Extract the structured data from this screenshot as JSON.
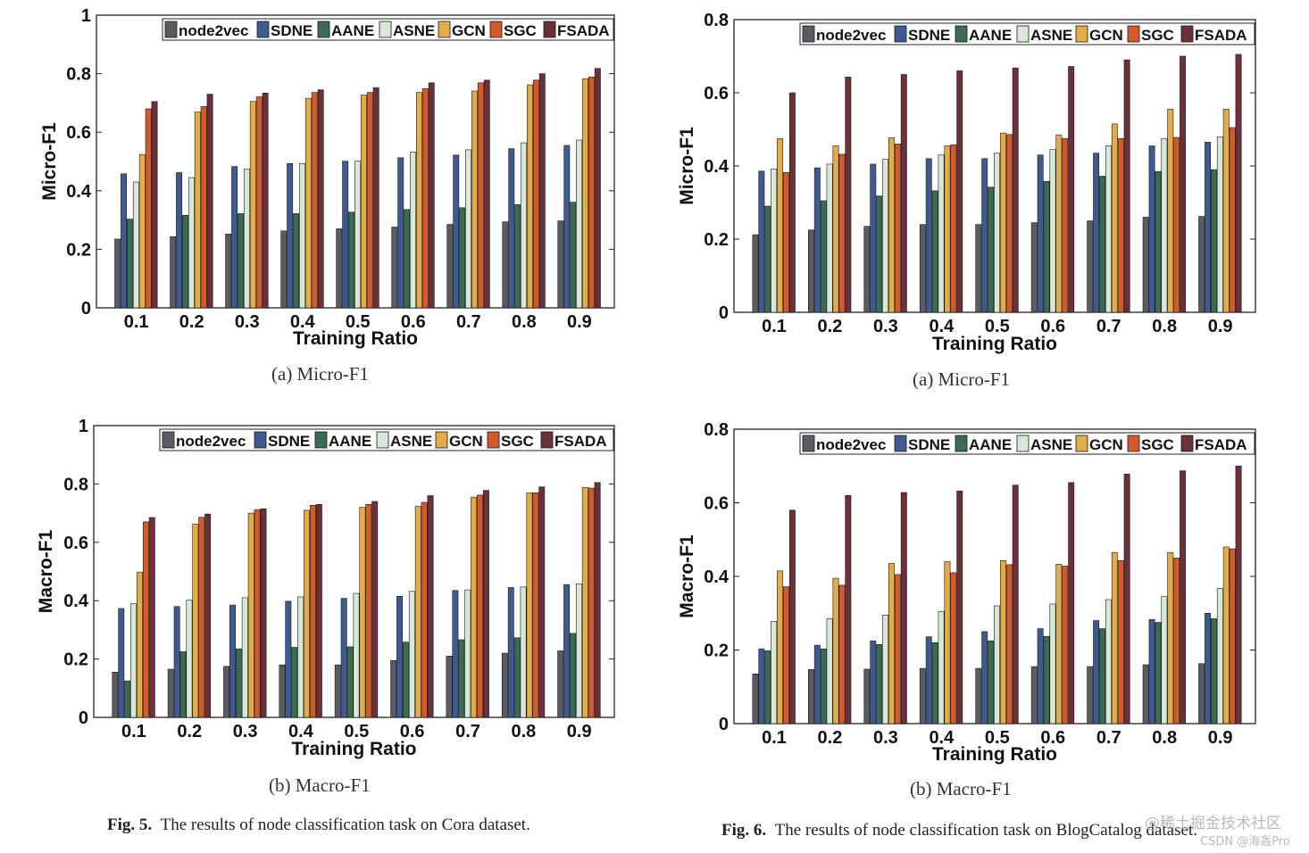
{
  "series_names": [
    "node2vec",
    "SDNE",
    "AANE",
    "ASNE",
    "GCN",
    "SGC",
    "FSADA"
  ],
  "colors": {
    "node2vec": "#5b5c63",
    "SDNE": "#3f5a91",
    "AANE": "#3b6b53",
    "ASNE": "#d7e8d6",
    "GCN": "#e3ac47",
    "SGC": "#d25a2b",
    "FSADA": "#6b3038"
  },
  "captions": {
    "fig5_label": "Fig. 5.",
    "fig5_text": "The results of node classification task on Cora dataset.",
    "fig6_label": "Fig. 6.",
    "fig6_text": "The results of node classification task on BlogCatalog dataset."
  },
  "watermark": {
    "line1": "@稀土掘金技术社区",
    "line2": "CSDN @海轰Pro"
  },
  "chart_data": [
    {
      "id": "cora-micro",
      "type": "bar",
      "subcaption": "(a)  Micro-F1",
      "xlabel": "Training Ratio",
      "ylabel": "Micro-F1",
      "ylim": [
        0,
        1
      ],
      "yticks": [
        "0",
        "0.2",
        "0.4",
        "0.6",
        "0.8",
        "1"
      ],
      "categories": [
        "0.1",
        "0.2",
        "0.3",
        "0.4",
        "0.5",
        "0.6",
        "0.7",
        "0.8",
        "0.9"
      ],
      "series": [
        {
          "name": "node2vec",
          "values": [
            0.235,
            0.243,
            0.252,
            0.263,
            0.27,
            0.276,
            0.285,
            0.294,
            0.297
          ]
        },
        {
          "name": "SDNE",
          "values": [
            0.458,
            0.462,
            0.483,
            0.493,
            0.501,
            0.513,
            0.522,
            0.544,
            0.555
          ]
        },
        {
          "name": "AANE",
          "values": [
            0.303,
            0.316,
            0.322,
            0.322,
            0.327,
            0.336,
            0.342,
            0.353,
            0.361
          ]
        },
        {
          "name": "ASNE",
          "values": [
            0.43,
            0.445,
            0.474,
            0.493,
            0.501,
            0.532,
            0.54,
            0.564,
            0.573
          ]
        },
        {
          "name": "GCN",
          "values": [
            0.524,
            0.669,
            0.705,
            0.716,
            0.727,
            0.736,
            0.741,
            0.762,
            0.783
          ]
        },
        {
          "name": "SGC",
          "values": [
            0.68,
            0.688,
            0.721,
            0.736,
            0.736,
            0.749,
            0.769,
            0.778,
            0.789
          ]
        },
        {
          "name": "FSADA",
          "values": [
            0.705,
            0.73,
            0.734,
            0.745,
            0.752,
            0.769,
            0.778,
            0.8,
            0.818
          ]
        }
      ]
    },
    {
      "id": "cora-macro",
      "type": "bar",
      "subcaption": "(b)  Macro-F1",
      "xlabel": "Training Ratio",
      "ylabel": "Macro-F1",
      "ylim": [
        0,
        1
      ],
      "yticks": [
        "0",
        "0.2",
        "0.4",
        "0.6",
        "0.8",
        "1"
      ],
      "categories": [
        "0.1",
        "0.2",
        "0.3",
        "0.4",
        "0.5",
        "0.6",
        "0.7",
        "0.8",
        "0.9"
      ],
      "series": [
        {
          "name": "node2vec",
          "values": [
            0.155,
            0.165,
            0.175,
            0.18,
            0.18,
            0.195,
            0.21,
            0.22,
            0.228
          ]
        },
        {
          "name": "SDNE",
          "values": [
            0.373,
            0.38,
            0.385,
            0.398,
            0.408,
            0.415,
            0.435,
            0.445,
            0.455
          ]
        },
        {
          "name": "AANE",
          "values": [
            0.125,
            0.225,
            0.235,
            0.24,
            0.242,
            0.258,
            0.266,
            0.273,
            0.288
          ]
        },
        {
          "name": "ASNE",
          "values": [
            0.39,
            0.402,
            0.41,
            0.413,
            0.425,
            0.432,
            0.437,
            0.447,
            0.458
          ]
        },
        {
          "name": "GCN",
          "values": [
            0.498,
            0.663,
            0.7,
            0.71,
            0.72,
            0.723,
            0.755,
            0.77,
            0.788
          ]
        },
        {
          "name": "SGC",
          "values": [
            0.67,
            0.686,
            0.712,
            0.727,
            0.73,
            0.737,
            0.762,
            0.77,
            0.786
          ]
        },
        {
          "name": "FSADA",
          "values": [
            0.685,
            0.697,
            0.715,
            0.73,
            0.74,
            0.76,
            0.778,
            0.79,
            0.805
          ]
        }
      ]
    },
    {
      "id": "blog-micro",
      "type": "bar",
      "subcaption": "(a)  Micro-F1",
      "xlabel": "Training Ratio",
      "ylabel": "Micro-F1",
      "ylim": [
        0,
        0.8
      ],
      "yticks": [
        "0",
        "0.2",
        "0.4",
        "0.6",
        "0.8"
      ],
      "categories": [
        "0.1",
        "0.2",
        "0.3",
        "0.4",
        "0.5",
        "0.6",
        "0.7",
        "0.8",
        "0.9"
      ],
      "series": [
        {
          "name": "node2vec",
          "values": [
            0.212,
            0.225,
            0.235,
            0.24,
            0.24,
            0.245,
            0.25,
            0.26,
            0.262
          ]
        },
        {
          "name": "SDNE",
          "values": [
            0.386,
            0.395,
            0.405,
            0.42,
            0.42,
            0.43,
            0.435,
            0.455,
            0.465
          ]
        },
        {
          "name": "AANE",
          "values": [
            0.29,
            0.305,
            0.318,
            0.332,
            0.342,
            0.358,
            0.372,
            0.385,
            0.39
          ]
        },
        {
          "name": "ASNE",
          "values": [
            0.392,
            0.405,
            0.418,
            0.43,
            0.435,
            0.445,
            0.455,
            0.475,
            0.48
          ]
        },
        {
          "name": "GCN",
          "values": [
            0.475,
            0.455,
            0.477,
            0.455,
            0.49,
            0.485,
            0.515,
            0.555,
            0.555
          ]
        },
        {
          "name": "SGC",
          "values": [
            0.382,
            0.432,
            0.46,
            0.458,
            0.486,
            0.475,
            0.475,
            0.478,
            0.505
          ]
        },
        {
          "name": "FSADA",
          "values": [
            0.6,
            0.643,
            0.65,
            0.66,
            0.668,
            0.672,
            0.69,
            0.7,
            0.705
          ]
        }
      ]
    },
    {
      "id": "blog-macro",
      "type": "bar",
      "subcaption": "(b)  Macro-F1",
      "xlabel": "Training Ratio",
      "ylabel": "Macro-F1",
      "ylim": [
        0,
        0.8
      ],
      "yticks": [
        "0",
        "0.2",
        "0.4",
        "0.6",
        "0.8"
      ],
      "categories": [
        "0.1",
        "0.2",
        "0.3",
        "0.4",
        "0.5",
        "0.6",
        "0.7",
        "0.8",
        "0.9"
      ],
      "series": [
        {
          "name": "node2vec",
          "values": [
            0.135,
            0.147,
            0.148,
            0.15,
            0.15,
            0.155,
            0.155,
            0.16,
            0.163
          ]
        },
        {
          "name": "SDNE",
          "values": [
            0.203,
            0.213,
            0.225,
            0.236,
            0.25,
            0.258,
            0.28,
            0.283,
            0.3
          ]
        },
        {
          "name": "AANE",
          "values": [
            0.198,
            0.203,
            0.215,
            0.22,
            0.225,
            0.237,
            0.258,
            0.275,
            0.285
          ]
        },
        {
          "name": "ASNE",
          "values": [
            0.278,
            0.285,
            0.295,
            0.305,
            0.32,
            0.325,
            0.337,
            0.345,
            0.367
          ]
        },
        {
          "name": "GCN",
          "values": [
            0.415,
            0.395,
            0.435,
            0.44,
            0.443,
            0.433,
            0.465,
            0.465,
            0.48
          ]
        },
        {
          "name": "SGC",
          "values": [
            0.372,
            0.376,
            0.405,
            0.41,
            0.432,
            0.428,
            0.443,
            0.45,
            0.475
          ]
        },
        {
          "name": "FSADA",
          "values": [
            0.58,
            0.62,
            0.628,
            0.632,
            0.648,
            0.655,
            0.678,
            0.687,
            0.7
          ]
        }
      ]
    }
  ]
}
